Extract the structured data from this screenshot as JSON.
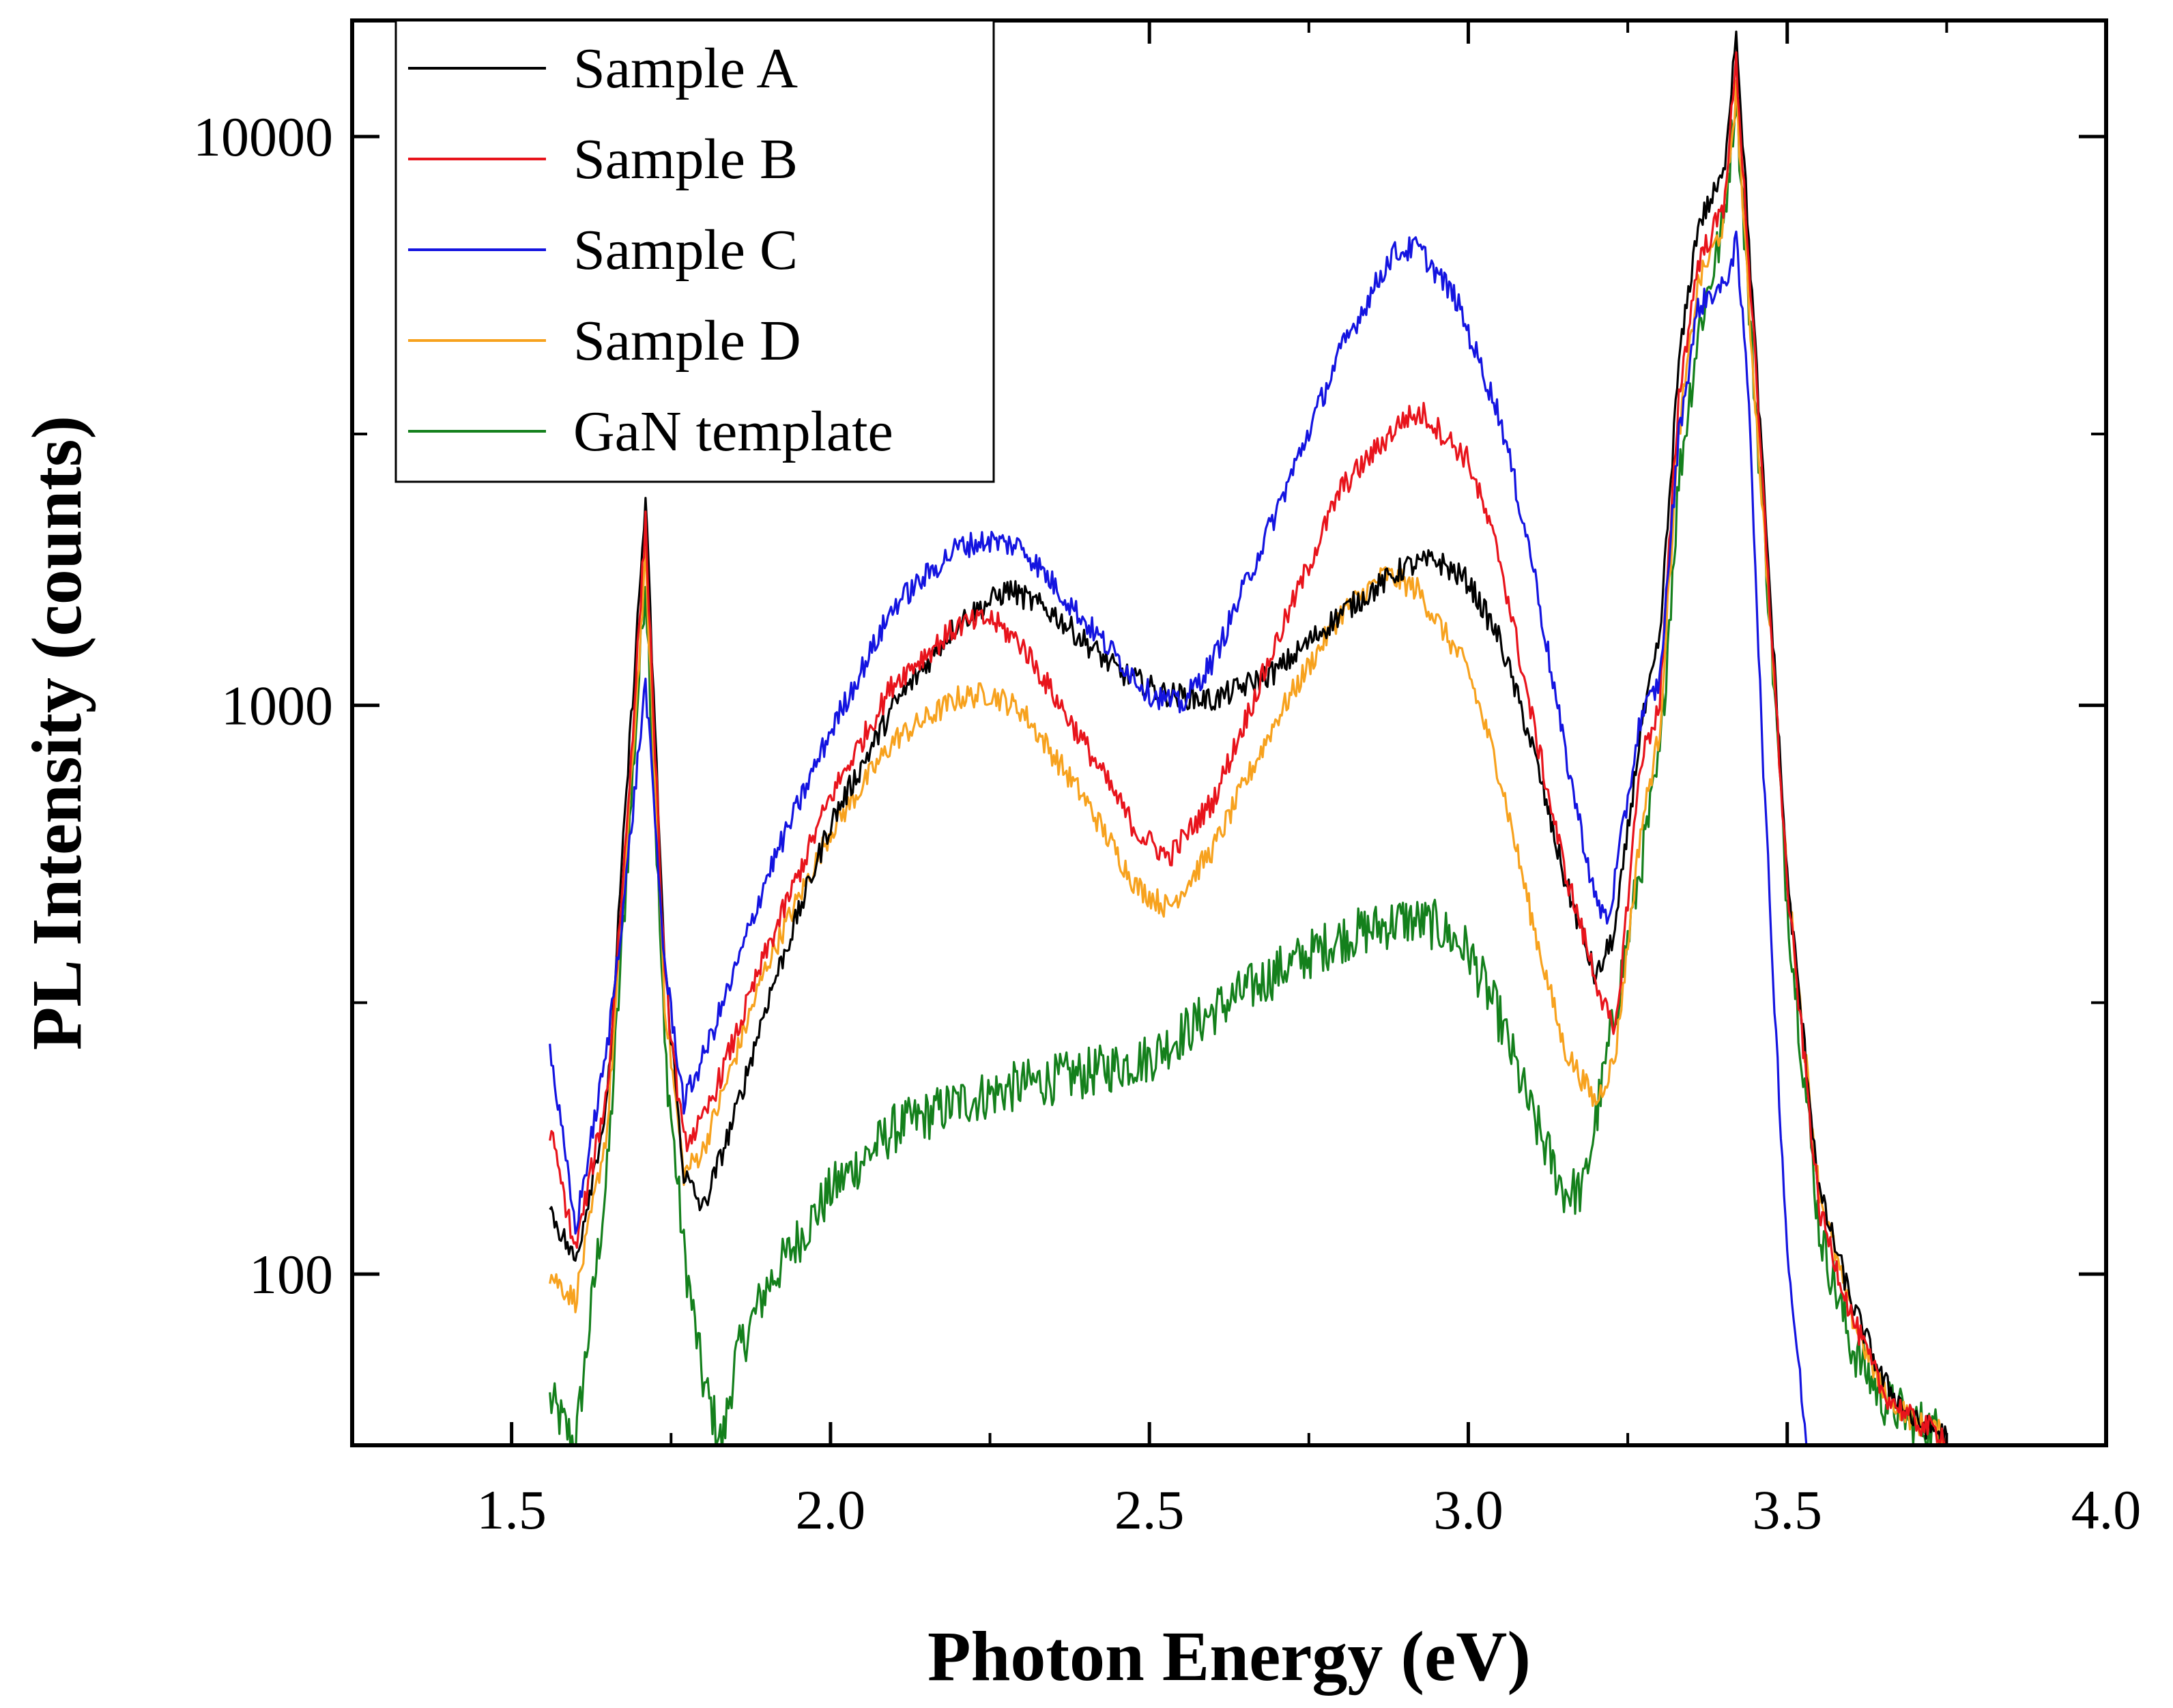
{
  "chart_data": {
    "type": "line",
    "title": "",
    "xlabel": "Photon Energy (eV)",
    "ylabel": "PL Intensity (counts)",
    "xlim": [
      1.25,
      4.0
    ],
    "ylim": [
      50,
      16000
    ],
    "yscale": "log",
    "grid": false,
    "legend_position": "top-left",
    "x_ticks": [
      1.5,
      2.0,
      2.5,
      3.0,
      3.5,
      4.0
    ],
    "x_tick_labels": [
      "1.5",
      "2.0",
      "2.5",
      "3.0",
      "3.5",
      "4.0"
    ],
    "y_ticks": [
      100,
      1000,
      10000
    ],
    "y_tick_labels": [
      "100",
      "1000",
      "10000"
    ],
    "series": [
      {
        "name": "Sample A",
        "color": "#000000",
        "x": [
          1.56,
          1.6,
          1.65,
          1.68,
          1.71,
          1.74,
          1.77,
          1.8,
          1.85,
          1.9,
          2.0,
          2.1,
          2.2,
          2.28,
          2.35,
          2.45,
          2.52,
          2.6,
          2.7,
          2.8,
          2.9,
          2.95,
          3.0,
          3.05,
          3.1,
          3.15,
          3.2,
          3.23,
          3.27,
          3.3,
          3.33,
          3.36,
          3.4,
          3.42,
          3.44,
          3.47,
          3.5,
          3.55,
          3.6,
          3.65,
          3.7,
          3.75
        ],
        "y": [
          130,
          105,
          200,
          700,
          2300,
          350,
          150,
          130,
          190,
          300,
          620,
          1000,
          1400,
          1600,
          1450,
          1150,
          1050,
          1020,
          1150,
          1450,
          1750,
          1800,
          1650,
          1300,
          850,
          500,
          330,
          400,
          900,
          1300,
          4000,
          7000,
          8500,
          15500,
          6500,
          1800,
          500,
          140,
          90,
          65,
          55,
          52
        ]
      },
      {
        "name": "Sample B",
        "color": "#e8141c",
        "x": [
          1.56,
          1.6,
          1.65,
          1.68,
          1.71,
          1.74,
          1.77,
          1.8,
          1.85,
          1.9,
          2.0,
          2.1,
          2.2,
          2.25,
          2.3,
          2.4,
          2.48,
          2.53,
          2.6,
          2.7,
          2.8,
          2.9,
          2.93,
          3.0,
          3.05,
          3.1,
          3.15,
          3.2,
          3.23,
          3.27,
          3.3,
          3.33,
          3.36,
          3.4,
          3.42,
          3.44,
          3.47,
          3.5,
          3.55,
          3.6,
          3.65,
          3.7,
          3.75
        ],
        "y": [
          180,
          110,
          210,
          600,
          2100,
          330,
          170,
          185,
          260,
          370,
          690,
          1100,
          1380,
          1420,
          1280,
          850,
          600,
          540,
          680,
          1300,
          2400,
          3200,
          3250,
          2700,
          1800,
          950,
          520,
          330,
          260,
          800,
          1000,
          3500,
          6000,
          7500,
          13500,
          6000,
          1700,
          480,
          130,
          85,
          62,
          55,
          52
        ]
      },
      {
        "name": "Sample C",
        "color": "#1414e0",
        "x": [
          1.56,
          1.6,
          1.65,
          1.68,
          1.71,
          1.74,
          1.77,
          1.8,
          1.85,
          1.9,
          2.0,
          2.1,
          2.2,
          2.25,
          2.3,
          2.4,
          2.5,
          2.55,
          2.6,
          2.7,
          2.8,
          2.88,
          2.92,
          2.98,
          3.05,
          3.1,
          3.15,
          3.2,
          3.22,
          3.27,
          3.3,
          3.33,
          3.36,
          3.38,
          3.4,
          3.42,
          3.44,
          3.46,
          3.48,
          3.5,
          3.53
        ],
        "y": [
          250,
          120,
          250,
          500,
          1100,
          350,
          200,
          240,
          340,
          500,
          900,
          1500,
          1900,
          1950,
          1900,
          1400,
          1050,
          1000,
          1200,
          2200,
          4200,
          6200,
          6400,
          5200,
          3200,
          1800,
          850,
          450,
          420,
          950,
          1100,
          3000,
          5000,
          5300,
          5400,
          6500,
          3500,
          900,
          300,
          110,
          50
        ]
      },
      {
        "name": "Sample D",
        "color": "#f7a21e",
        "x": [
          1.56,
          1.6,
          1.65,
          1.68,
          1.71,
          1.74,
          1.77,
          1.8,
          1.85,
          1.9,
          2.0,
          2.1,
          2.2,
          2.25,
          2.3,
          2.4,
          2.48,
          2.53,
          2.6,
          2.7,
          2.8,
          2.87,
          2.92,
          3.0,
          3.05,
          3.1,
          3.15,
          3.2,
          3.23,
          3.27,
          3.3,
          3.33,
          3.36,
          3.4,
          3.42,
          3.44,
          3.47,
          3.5,
          3.55,
          3.6,
          3.65,
          3.7,
          3.75
        ],
        "y": [
          100,
          90,
          180,
          550,
          1800,
          300,
          150,
          165,
          240,
          350,
          600,
          870,
          1030,
          1050,
          980,
          680,
          480,
          440,
          560,
          950,
          1450,
          1700,
          1600,
          1150,
          750,
          420,
          250,
          200,
          240,
          600,
          900,
          3000,
          5500,
          7000,
          12000,
          5000,
          1600,
          500,
          140,
          85,
          62,
          55,
          52
        ]
      },
      {
        "name": "GaN template",
        "color": "#14801c",
        "x": [
          1.56,
          1.6,
          1.65,
          1.68,
          1.71,
          1.74,
          1.77,
          1.8,
          1.83,
          1.85,
          1.9,
          2.0,
          2.1,
          2.2,
          2.3,
          2.4,
          2.5,
          2.6,
          2.7,
          2.8,
          2.9,
          2.95,
          3.0,
          3.05,
          3.1,
          3.15,
          3.18,
          3.22,
          3.27,
          3.3,
          3.33,
          3.36,
          3.4,
          3.42,
          3.44,
          3.47,
          3.5,
          3.55,
          3.6,
          3.65,
          3.7,
          3.75
        ],
        "y": [
          60,
          50,
          150,
          500,
          1700,
          250,
          110,
          65,
          50,
          70,
          95,
          140,
          180,
          200,
          215,
          225,
          240,
          290,
          340,
          390,
          420,
          410,
          370,
          280,
          190,
          140,
          140,
          250,
          520,
          800,
          2500,
          4500,
          7000,
          12000,
          5000,
          1600,
          450,
          120,
          75,
          60,
          55,
          52
        ]
      }
    ]
  }
}
